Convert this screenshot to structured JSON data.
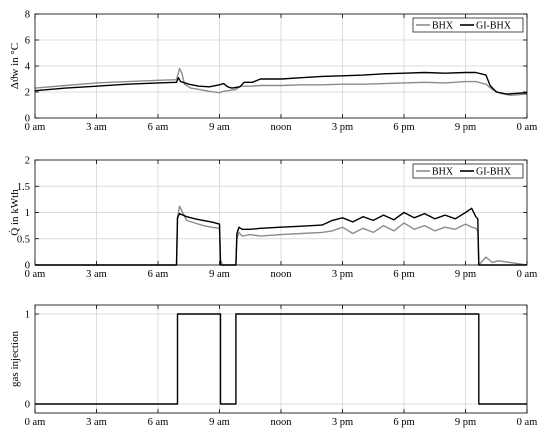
{
  "colors": {
    "BHX": "#8c8c8c",
    "GI-BHX": "#000000",
    "grid": "#dcdcdc"
  },
  "chart_data": [
    {
      "type": "line",
      "ylabel": "Δϑw in °C",
      "ylim": [
        0,
        8
      ],
      "yticks": [
        0,
        2,
        4,
        6,
        8
      ],
      "xlim": [
        0,
        24
      ],
      "xticks": [
        0,
        3,
        6,
        9,
        12,
        15,
        18,
        21,
        24
      ],
      "xticklabels": [
        "0 am",
        "3 am",
        "6 am",
        "9 am",
        "noon",
        "3 pm",
        "6 pm",
        "9 pm",
        "0 am"
      ],
      "grid": true,
      "legend": "top-right",
      "series": [
        {
          "name": "BHX",
          "x": [
            0,
            1.5,
            3,
            4.5,
            6,
            6.9,
            7.0,
            7.05,
            7.15,
            7.3,
            7.6,
            8.0,
            8.5,
            9.0,
            9.2,
            9.4,
            9.8,
            10.0,
            10.5,
            11,
            12,
            13,
            14,
            15,
            16,
            17,
            18,
            19,
            20,
            21,
            21.5,
            22.0,
            22.3,
            22.7,
            23.2,
            24
          ],
          "y": [
            2.3,
            2.5,
            2.7,
            2.8,
            2.9,
            2.95,
            3.5,
            3.8,
            3.5,
            2.6,
            2.3,
            2.2,
            2.05,
            1.95,
            2.05,
            2.1,
            2.2,
            2.45,
            2.45,
            2.5,
            2.5,
            2.55,
            2.55,
            2.6,
            2.6,
            2.65,
            2.7,
            2.75,
            2.7,
            2.8,
            2.8,
            2.6,
            2.2,
            1.9,
            1.75,
            1.85
          ]
        },
        {
          "name": "GI-BHX",
          "x": [
            0,
            1.5,
            3,
            4.5,
            6,
            6.9,
            7.0,
            7.1,
            7.5,
            8.0,
            8.5,
            9.0,
            9.2,
            9.4,
            9.6,
            9.8,
            10.0,
            10.2,
            10.6,
            11,
            12,
            13,
            14,
            15,
            16,
            17,
            18,
            19,
            20,
            21,
            21.5,
            22.0,
            22.2,
            22.5,
            23,
            24
          ],
          "y": [
            2.1,
            2.3,
            2.45,
            2.6,
            2.7,
            2.75,
            3.1,
            2.8,
            2.6,
            2.45,
            2.4,
            2.55,
            2.65,
            2.4,
            2.3,
            2.35,
            2.4,
            2.75,
            2.75,
            3.0,
            3.0,
            3.1,
            3.2,
            3.25,
            3.3,
            3.4,
            3.45,
            3.5,
            3.45,
            3.5,
            3.5,
            3.3,
            2.5,
            2.0,
            1.85,
            1.95
          ]
        }
      ]
    },
    {
      "type": "line",
      "ylabel": "Q̇ in kWth",
      "ylim": [
        0,
        2
      ],
      "yticks": [
        0,
        0.5,
        1,
        1.5,
        2
      ],
      "xlim": [
        0,
        24
      ],
      "xticks": [
        0,
        3,
        6,
        9,
        12,
        15,
        18,
        21,
        24
      ],
      "xticklabels": [
        "0 am",
        "3 am",
        "6 am",
        "9 am",
        "noon",
        "3 pm",
        "6 pm",
        "9 pm",
        "0 am"
      ],
      "grid": true,
      "legend": "top-right",
      "series": [
        {
          "name": "BHX",
          "x": [
            0,
            6.9,
            6.95,
            7.05,
            7.4,
            7.8,
            8.2,
            8.6,
            9.0,
            9.05,
            9.1,
            9.15,
            9.8,
            9.85,
            9.95,
            10.1,
            10.5,
            11,
            12,
            13,
            14,
            14.5,
            15,
            15.5,
            16,
            16.5,
            17,
            17.5,
            18,
            18.5,
            19,
            19.5,
            20,
            20.5,
            21,
            21.3,
            21.5,
            21.6,
            21.65,
            22.0,
            22.3,
            22.6,
            24
          ],
          "y": [
            0,
            0,
            0.9,
            1.12,
            0.85,
            0.8,
            0.75,
            0.72,
            0.7,
            0.1,
            0.05,
            0,
            0,
            0.5,
            0.62,
            0.55,
            0.58,
            0.55,
            0.58,
            0.6,
            0.62,
            0.65,
            0.72,
            0.6,
            0.7,
            0.62,
            0.75,
            0.65,
            0.8,
            0.68,
            0.75,
            0.65,
            0.72,
            0.68,
            0.78,
            0.72,
            0.7,
            0.65,
            0,
            0.15,
            0.05,
            0.08,
            0
          ]
        },
        {
          "name": "GI-BHX",
          "x": [
            0,
            6.9,
            6.95,
            7.05,
            7.4,
            7.8,
            8.2,
            8.6,
            9.0,
            9.05,
            9.8,
            9.85,
            9.95,
            10.1,
            10.5,
            11,
            12,
            13,
            14,
            14.5,
            15,
            15.5,
            16,
            16.5,
            17,
            17.5,
            18,
            18.5,
            19,
            19.5,
            20,
            20.5,
            21,
            21.3,
            21.5,
            21.6,
            21.65,
            24
          ],
          "y": [
            0,
            0,
            0.9,
            0.98,
            0.92,
            0.88,
            0.85,
            0.82,
            0.78,
            0,
            0,
            0.6,
            0.72,
            0.68,
            0.68,
            0.7,
            0.72,
            0.74,
            0.76,
            0.85,
            0.9,
            0.82,
            0.92,
            0.85,
            0.95,
            0.86,
            1.0,
            0.9,
            0.98,
            0.88,
            0.95,
            0.88,
            1.0,
            1.08,
            0.92,
            0.88,
            0,
            0
          ]
        }
      ]
    },
    {
      "type": "line",
      "ylabel": "gas injection",
      "ylim": [
        -0.1,
        1.1
      ],
      "yticks": [
        0,
        1
      ],
      "xlim": [
        0,
        24
      ],
      "xticks": [
        0,
        3,
        6,
        9,
        12,
        15,
        18,
        21,
        24
      ],
      "xticklabels": [
        "0 am",
        "3 am",
        "6 am",
        "9 am",
        "noon",
        "3 pm",
        "6 pm",
        "9 pm",
        "0 am"
      ],
      "grid": true,
      "legend": "none",
      "series": [
        {
          "x": [
            0,
            6.95,
            6.95,
            9.05,
            9.05,
            9.8,
            9.8,
            21.65,
            21.65,
            24
          ],
          "y": [
            0,
            0,
            1,
            1,
            0,
            0,
            1,
            1,
            0,
            0
          ]
        }
      ]
    }
  ]
}
